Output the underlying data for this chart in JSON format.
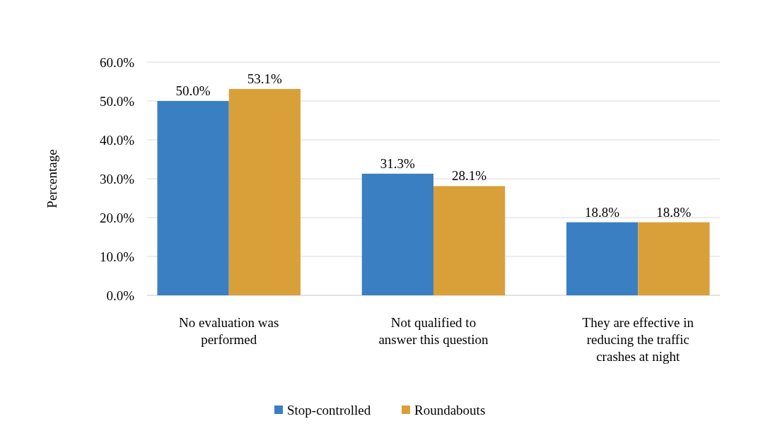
{
  "chart_data": {
    "type": "bar",
    "ylabel": "Percentage",
    "categories": [
      "No evaluation was performed",
      "Not qualified to answer this question",
      "They are effective in reducing the traffic crashes at night"
    ],
    "series": [
      {
        "name": "Stop-controlled",
        "color": "#3a7fc1",
        "values": [
          50.0,
          31.3,
          18.8
        ],
        "value_labels": [
          "50.0%",
          "31.3%",
          "18.8%"
        ]
      },
      {
        "name": "Roundabouts",
        "color": "#d9a03a",
        "values": [
          53.1,
          28.1,
          18.8
        ],
        "value_labels": [
          "53.1%",
          "28.1%",
          "18.8%"
        ]
      }
    ],
    "ylim": [
      0,
      60
    ],
    "yticks": [
      {
        "value": 0,
        "label": "0.0%"
      },
      {
        "value": 10,
        "label": "10.0%"
      },
      {
        "value": 20,
        "label": "20.0%"
      },
      {
        "value": 30,
        "label": "30.0%"
      },
      {
        "value": 40,
        "label": "40.0%"
      },
      {
        "value": 50,
        "label": "50.0%"
      },
      {
        "value": 60,
        "label": "60.0%"
      }
    ],
    "grid": "y",
    "legend": "bottom"
  }
}
